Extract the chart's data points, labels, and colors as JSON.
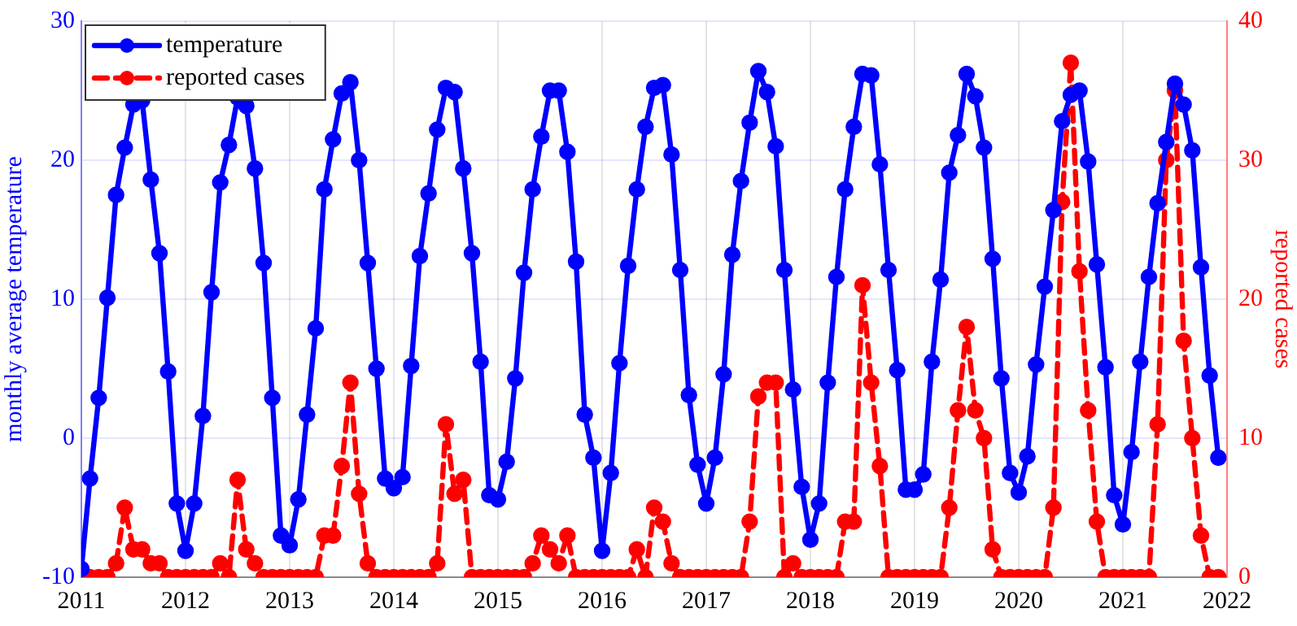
{
  "chart_data": {
    "type": "line",
    "xlabel": null,
    "ylabel": "monthly average temperature",
    "y2label": "reported cases",
    "x": [
      "2011-01",
      "2011-02",
      "2011-03",
      "2011-04",
      "2011-05",
      "2011-06",
      "2011-07",
      "2011-08",
      "2011-09",
      "2011-10",
      "2011-11",
      "2011-12",
      "2012-01",
      "2012-02",
      "2012-03",
      "2012-04",
      "2012-05",
      "2012-06",
      "2012-07",
      "2012-08",
      "2012-09",
      "2012-10",
      "2012-11",
      "2012-12",
      "2013-01",
      "2013-02",
      "2013-03",
      "2013-04",
      "2013-05",
      "2013-06",
      "2013-07",
      "2013-08",
      "2013-09",
      "2013-10",
      "2013-11",
      "2013-12",
      "2014-01",
      "2014-02",
      "2014-03",
      "2014-04",
      "2014-05",
      "2014-06",
      "2014-07",
      "2014-08",
      "2014-09",
      "2014-10",
      "2014-11",
      "2014-12",
      "2015-01",
      "2015-02",
      "2015-03",
      "2015-04",
      "2015-05",
      "2015-06",
      "2015-07",
      "2015-08",
      "2015-09",
      "2015-10",
      "2015-11",
      "2015-12",
      "2016-01",
      "2016-02",
      "2016-03",
      "2016-04",
      "2016-05",
      "2016-06",
      "2016-07",
      "2016-08",
      "2016-09",
      "2016-10",
      "2016-11",
      "2016-12",
      "2017-01",
      "2017-02",
      "2017-03",
      "2017-04",
      "2017-05",
      "2017-06",
      "2017-07",
      "2017-08",
      "2017-09",
      "2017-10",
      "2017-11",
      "2017-12",
      "2018-01",
      "2018-02",
      "2018-03",
      "2018-04",
      "2018-05",
      "2018-06",
      "2018-07",
      "2018-08",
      "2018-09",
      "2018-10",
      "2018-11",
      "2018-12",
      "2019-01",
      "2019-02",
      "2019-03",
      "2019-04",
      "2019-05",
      "2019-06",
      "2019-07",
      "2019-08",
      "2019-09",
      "2019-10",
      "2019-11",
      "2019-12",
      "2020-01",
      "2020-02",
      "2020-03",
      "2020-04",
      "2020-05",
      "2020-06",
      "2020-07",
      "2020-08",
      "2020-09",
      "2020-10",
      "2020-11",
      "2020-12",
      "2021-01",
      "2021-02",
      "2021-03",
      "2021-04",
      "2021-05",
      "2021-06",
      "2021-07",
      "2021-08",
      "2021-09",
      "2021-10",
      "2021-11",
      "2021-12"
    ],
    "series": [
      {
        "name": "temperature",
        "color": "#0000ff",
        "line_style": "solid",
        "values": [
          -9.4,
          -2.9,
          2.9,
          10.1,
          17.5,
          20.9,
          24.0,
          24.3,
          18.6,
          13.3,
          4.8,
          -4.7,
          -8.1,
          -4.7,
          1.6,
          10.5,
          18.4,
          21.1,
          24.5,
          23.9,
          19.4,
          12.6,
          2.9,
          -7.0,
          -7.7,
          -4.4,
          1.7,
          7.9,
          17.9,
          21.5,
          24.8,
          25.6,
          20.0,
          12.6,
          5.0,
          -2.9,
          -3.6,
          -2.8,
          5.2,
          13.1,
          17.6,
          22.2,
          25.2,
          24.9,
          19.4,
          13.3,
          5.5,
          -4.1,
          -4.4,
          -1.7,
          4.3,
          11.9,
          17.9,
          21.7,
          25.0,
          25.0,
          20.6,
          12.7,
          1.7,
          -1.4,
          -8.1,
          -2.5,
          5.4,
          12.4,
          17.9,
          22.4,
          25.2,
          25.4,
          20.4,
          12.1,
          3.1,
          -1.9,
          -4.7,
          -1.4,
          4.6,
          13.2,
          18.5,
          22.7,
          26.4,
          24.9,
          21.0,
          12.1,
          3.5,
          -3.5,
          -7.3,
          -4.7,
          4.0,
          11.6,
          17.9,
          22.4,
          26.2,
          26.1,
          19.7,
          12.1,
          4.9,
          -3.7,
          -3.7,
          -2.6,
          5.5,
          11.4,
          19.1,
          21.8,
          26.2,
          24.6,
          20.9,
          12.9,
          4.3,
          -2.5,
          -3.9,
          -1.3,
          5.3,
          10.9,
          16.4,
          22.8,
          24.7,
          25.0,
          19.9,
          12.5,
          5.1,
          -4.1,
          -6.2,
          -1.0,
          5.5,
          11.6,
          16.9,
          21.3,
          25.5,
          24.0,
          20.7,
          12.3,
          4.5,
          -1.4
        ]
      },
      {
        "name": "reported cases",
        "color": "#ff0000",
        "line_style": "dashed",
        "axis": "y2",
        "values": [
          0,
          0,
          0,
          0,
          1,
          5,
          2,
          2,
          1,
          1,
          0,
          0,
          0,
          0,
          0,
          0,
          1,
          0,
          7,
          2,
          1,
          0,
          0,
          0,
          0,
          0,
          0,
          0,
          3,
          3,
          8,
          14,
          6,
          1,
          0,
          0,
          0,
          0,
          0,
          0,
          0,
          1,
          11,
          6,
          7,
          0,
          0,
          0,
          0,
          0,
          0,
          0,
          1,
          3,
          2,
          1,
          3,
          0,
          0,
          0,
          0,
          0,
          0,
          0,
          2,
          0,
          5,
          4,
          1,
          0,
          0,
          0,
          0,
          0,
          0,
          0,
          0,
          4,
          13,
          14,
          14,
          0,
          1,
          0,
          0,
          0,
          0,
          0,
          4,
          4,
          21,
          14,
          8,
          0,
          0,
          0,
          0,
          0,
          0,
          0,
          5,
          12,
          18,
          12,
          10,
          2,
          0,
          0,
          0,
          0,
          0,
          0,
          5,
          27,
          37,
          22,
          12,
          4,
          0,
          0,
          0,
          0,
          0,
          0,
          11,
          30,
          35,
          17,
          10,
          3,
          0,
          0
        ]
      }
    ],
    "xlim": [
      "2011",
      "2022"
    ],
    "xticks": [
      "2011",
      "2012",
      "2013",
      "2014",
      "2015",
      "2016",
      "2017",
      "2018",
      "2019",
      "2020",
      "2021",
      "2022"
    ],
    "ylim": [
      -10,
      30
    ],
    "yticks": [
      -10,
      0,
      10,
      20,
      30
    ],
    "y2lim": [
      0,
      40
    ],
    "y2ticks": [
      0,
      10,
      20,
      30,
      40
    ],
    "grid": true,
    "legend": "top left",
    "marker": "circle"
  }
}
